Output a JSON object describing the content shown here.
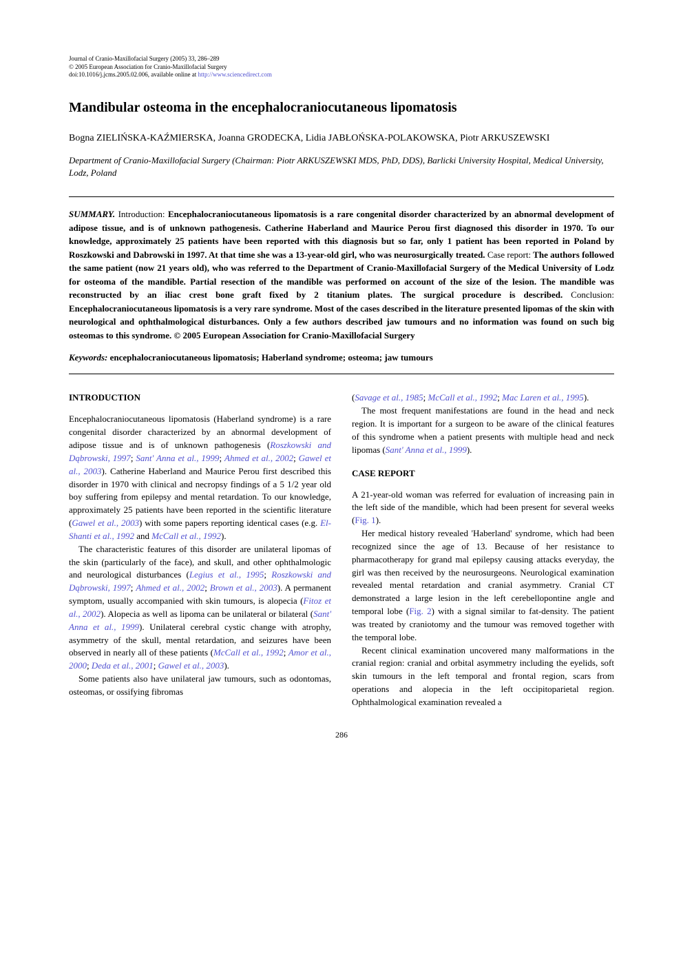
{
  "journal": {
    "name": "Journal of Cranio-Maxillofacial Surgery",
    "year_vol": "(2005) 33, 286–289",
    "copyright": "© 2005 European Association for Cranio-Maxillofacial Surgery",
    "doi": "doi:10.1016/j.jcms.2005.02.006, available online at",
    "url": "http://www.sciencedirect.com"
  },
  "title": "Mandibular osteoma in the encephalocraniocutaneous lipomatosis",
  "authors": "Bogna ZIELIŃSKA-KAŹMIERSKA, Joanna GRODECKA, Lidia JABŁOŃSKA-POLAKOWSKA, Piotr ARKUSZEWSKI",
  "affiliation": "Department of Cranio-Maxillofacial Surgery (Chairman: Piotr ARKUSZEWSKI MDS, PhD, DDS), Barlicki University Hospital, Medical University, Lodz, Poland",
  "summary": {
    "label": "SUMMARY.",
    "intro_label": "Introduction:",
    "intro_text": "Encephalocraniocutaneous lipomatosis is a rare congenital disorder characterized by an abnormal development of adipose tissue, and is of unknown pathogenesis. Catherine Haberland and Maurice Perou first diagnosed this disorder in 1970. To our knowledge, approximately 25 patients have been reported with this diagnosis but so far, only 1 patient has been reported in Poland by Roszkowski and Dabrowski in 1997. At that time she was a 13-year-old girl, who was neurosurgically treated.",
    "case_label": "Case report:",
    "case_text": "The authors followed the same patient (now 21 years old), who was referred to the Department of Cranio-Maxillofacial Surgery of the Medical University of Lodz for osteoma of the mandible. Partial resection of the mandible was performed on account of the size of the lesion. The mandible was reconstructed by an iliac crest bone graft fixed by 2 titanium plates. The surgical procedure is described.",
    "conclusion_label": "Conclusion:",
    "conclusion_text": "Encephalocraniocutaneous lipomatosis is a very rare syndrome. Most of the cases described in the literature presented lipomas of the skin with neurological and ophthalmological disturbances. Only a few authors described jaw tumours and no information was found on such big osteomas to this syndrome.",
    "copyright": "© 2005 European Association for Cranio-Maxillofacial Surgery"
  },
  "keywords": {
    "label": "Keywords:",
    "text": "encephalocraniocutaneous lipomatosis; Haberland syndrome; osteoma; jaw tumours"
  },
  "left_column": {
    "heading1": "INTRODUCTION",
    "p1_a": "Encephalocraniocutaneous lipomatosis (Haberland syndrome) is a rare congenital disorder characterized by an abnormal development of adipose tissue and is of unknown pathogenesis (",
    "cite1": "Roszkowski and Dąbrowski, 1997",
    "p1_b": "; ",
    "cite2": "Sant' Anna et al., 1999",
    "p1_c": "; ",
    "cite3": "Ahmed et al., 2002",
    "p1_d": "; ",
    "cite4": "Gawel et al., 2003",
    "p1_e": "). Catherine Haberland and Maurice Perou first described this disorder in 1970 with clinical and necropsy findings of a 5 1/2 year old boy suffering from epilepsy and mental retardation. To our knowledge, approximately 25 patients have been reported in the scientific literature (",
    "cite5": "Gawel et al., 2003",
    "p1_f": ") with some papers reporting identical cases (e.g. ",
    "cite6": "El-Shanti et al., 1992",
    "p1_g": " and ",
    "cite7": "McCall et al., 1992",
    "p1_h": ").",
    "p2_a": "The characteristic features of this disorder are unilateral lipomas of the skin (particularly of the face), and skull, and other ophthalmologic and neurological disturbances (",
    "cite8": "Legius et al., 1995",
    "p2_b": "; ",
    "cite9": "Roszkowski and Dąbrowski, 1997",
    "p2_c": "; ",
    "cite10": "Ahmed et al., 2002",
    "p2_d": "; ",
    "cite11": "Brown et al., 2003",
    "p2_e": "). A permanent symptom, usually accompanied with skin tumours, is alopecia (",
    "cite12": "Fitoz et al., 2002",
    "p2_f": "). Alopecia as well as lipoma can be unilateral or bilateral (",
    "cite13": "Sant' Anna et al., 1999",
    "p2_g": "). Unilateral cerebral cystic change with atrophy, asymmetry of the skull, mental retardation, and seizures have been observed in nearly all of these patients (",
    "cite14": "McCall et al., 1992",
    "p2_h": "; ",
    "cite15": "Amor et al., 2000",
    "p2_i": "; ",
    "cite16": "Deda et al., 2001",
    "p2_j": "; ",
    "cite17": "Gawel et al., 2003",
    "p2_k": ").",
    "p3": "Some patients also have unilateral jaw tumours, such as odontomas, osteomas, or ossifying fibromas"
  },
  "right_column": {
    "p0_a": "(",
    "cite1": "Savage et al., 1985",
    "p0_b": "; ",
    "cite2": "McCall et al., 1992",
    "p0_c": "; ",
    "cite3": "Mac Laren et al., 1995",
    "p0_d": ").",
    "p1_a": "The most frequent manifestations are found in the head and neck region. It is important for a surgeon to be aware of the clinical features of this syndrome when a patient presents with multiple head and neck lipomas (",
    "cite4": "Sant' Anna et al., 1999",
    "p1_b": ").",
    "heading2": "CASE REPORT",
    "p2_a": "A 21-year-old woman was referred for evaluation of increasing pain in the left side of the mandible, which had been present for several weeks (",
    "fig1": "Fig. 1",
    "p2_b": ").",
    "p3_a": "Her medical history revealed 'Haberland' syndrome, which had been recognized since the age of 13. Because of her resistance to pharmacotherapy for grand mal epilepsy causing attacks everyday, the girl was then received by the neurosurgeons. Neurological examination revealed mental retardation and cranial asymmetry. Cranial CT demonstrated a large lesion in the left cerebellopontine angle and temporal lobe (",
    "fig2": "Fig. 2",
    "p3_b": ") with a signal similar to fat-density. The patient was treated by craniotomy and the tumour was removed together with the temporal lobe.",
    "p4": "Recent clinical examination uncovered many malformations in the cranial region: cranial and orbital asymmetry including the eyelids, soft skin tumours in the left temporal and frontal region, scars from operations and alopecia in the left occipitoparietal region. Ophthalmological examination revealed a"
  },
  "page_number": "286"
}
